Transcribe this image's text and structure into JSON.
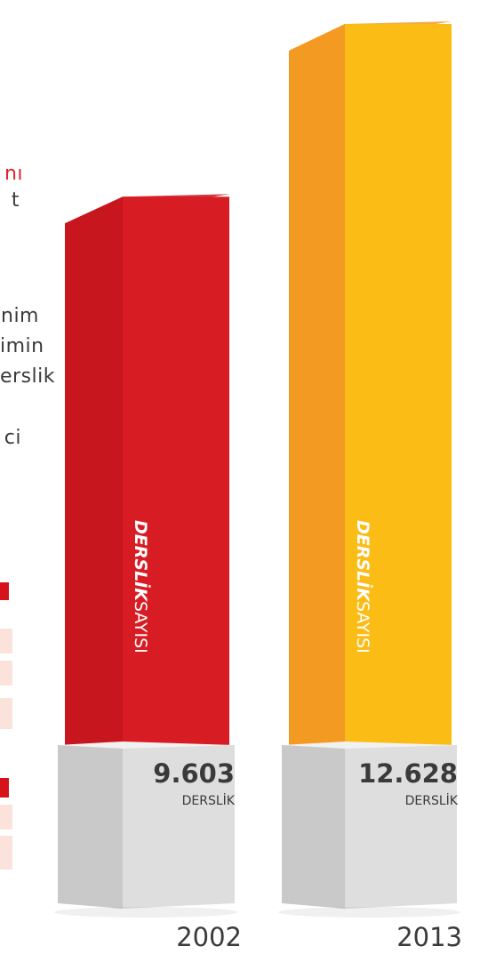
{
  "clipped_text": {
    "line1": "nı",
    "line2": "t",
    "line3": "nim",
    "line4": "imin",
    "line5": "erslik",
    "line6": "ci"
  },
  "chart_data": {
    "type": "bar",
    "categories": [
      "2002",
      "2013"
    ],
    "values": [
      9603,
      12628
    ],
    "value_labels": [
      "9.603",
      "12.628"
    ],
    "unit_label": "DERSLİK",
    "bar_label_bold": "DERSLİK",
    "bar_label_light": "SAYISI",
    "colors": {
      "bar_2002_front": "#d81c24",
      "bar_2002_side": "#c8161e",
      "bar_2002_top": "#b21219",
      "bar_2013_front": "#fbbc16",
      "bar_2013_side": "#f39a22",
      "bar_2013_top": "#e88b1e",
      "base_front": "#dedede",
      "base_side": "#c9c9c9",
      "base_top": "#f1f1f1",
      "year_text": "#3a3a3a",
      "value_text": "#3a3a3a"
    }
  }
}
